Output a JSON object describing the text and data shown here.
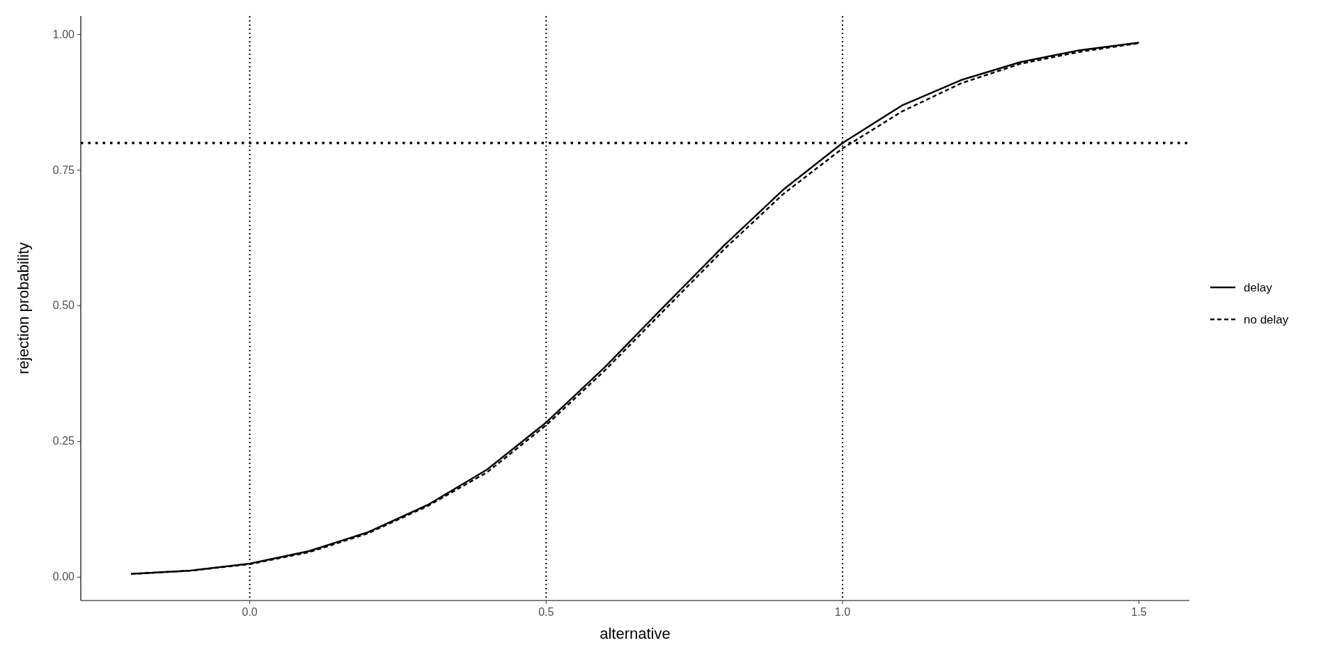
{
  "chart_data": {
    "type": "line",
    "xlabel": "alternative",
    "ylabel": "rejection probability",
    "x": [
      -0.2,
      -0.1,
      0,
      0.1,
      0.2,
      0.3,
      0.4,
      0.5,
      0.6,
      0.7,
      0.8,
      0.9,
      1.0,
      1.1,
      1.2,
      1.3,
      1.4,
      1.5
    ],
    "series": [
      {
        "name": "delay",
        "color": "#000000",
        "line_style": "solid",
        "values": [
          0.006,
          0.012,
          0.025,
          0.048,
          0.083,
          0.133,
          0.198,
          0.285,
          0.388,
          0.5,
          0.611,
          0.714,
          0.8,
          0.869,
          0.916,
          0.949,
          0.971,
          0.985
        ]
      },
      {
        "name": "no delay",
        "color": "#000000",
        "line_style": "dashed",
        "values": [
          0.006,
          0.012,
          0.024,
          0.046,
          0.081,
          0.131,
          0.193,
          0.28,
          0.382,
          0.493,
          0.604,
          0.706,
          0.79,
          0.858,
          0.91,
          0.946,
          0.968,
          0.984
        ]
      }
    ],
    "xlim": [
      -0.285,
      1.585
    ],
    "ylim": [
      -0.043,
      1.034
    ],
    "xticks": [
      {
        "value": 0,
        "label": "0.0"
      },
      0.5,
      {
        "value": 1,
        "label": "1.0"
      },
      1.5
    ],
    "yticks": [
      {
        "value": 0,
        "label": "0.00"
      },
      0.25,
      {
        "value": 0.5,
        "label": "0.50"
      },
      0.75,
      {
        "value": 1,
        "label": "1.00"
      }
    ],
    "ref_lines": [
      {
        "axis": "x",
        "value": 0,
        "line_style": "dotted"
      },
      {
        "axis": "x",
        "value": 0.5,
        "line_style": "dotted"
      },
      {
        "axis": "x",
        "value": 1,
        "line_style": "dotted"
      },
      {
        "axis": "y",
        "value": 0.8,
        "line_style": "dotted"
      }
    ],
    "grid": false,
    "legend": "right"
  }
}
